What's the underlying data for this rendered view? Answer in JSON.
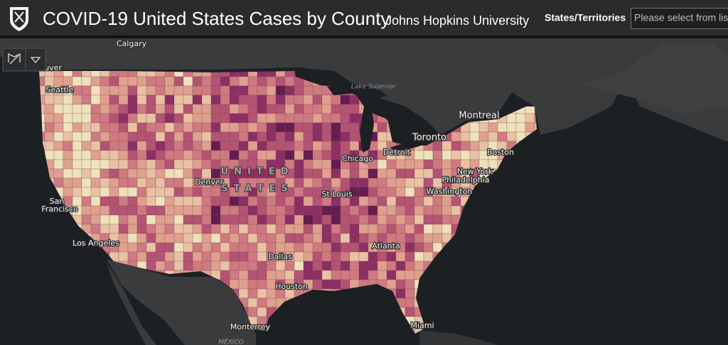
{
  "header": {
    "title": "COVID-19 United States Cases by County",
    "subtitle": "Johns Hopkins University",
    "filter_label": "States/Territories",
    "filter_placeholder": "Please select from list"
  },
  "map": {
    "labels": [
      "Calgary",
      "Vancouver",
      "Seattle",
      "Lake Superior",
      "Montreal",
      "Toronto",
      "Detroit",
      "Boston",
      "Chicago",
      "New York",
      "Philadelphia",
      "Washington",
      "UNITED",
      "STATES",
      "Denver",
      "St Louis",
      "San",
      "Francisco",
      "Los Angeles",
      "Dallas",
      "Atlanta",
      "Houston",
      "Monterrey",
      "Miami",
      "MÉXICO"
    ]
  }
}
